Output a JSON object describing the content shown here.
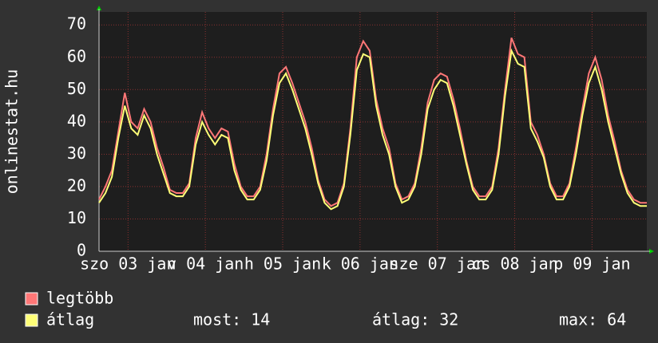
{
  "chart_data": {
    "type": "line",
    "ylabel": "onlinestat.hu",
    "xlim": [
      0,
      170
    ],
    "ylim": [
      0,
      74
    ],
    "yticks": [
      0,
      10,
      20,
      30,
      40,
      50,
      60,
      70
    ],
    "xticks": [
      {
        "value": 9,
        "label": "szo 03 jan"
      },
      {
        "value": 33,
        "label": "v 04 jan"
      },
      {
        "value": 57,
        "label": "h 05 jan"
      },
      {
        "value": 81,
        "label": "k 06 jan"
      },
      {
        "value": 105,
        "label": "sze 07 jan"
      },
      {
        "value": 129,
        "label": "cs 08 jan"
      },
      {
        "value": 153,
        "label": "p 09 jan"
      }
    ],
    "grid": true,
    "x": [
      0,
      2,
      4,
      6,
      8,
      10,
      12,
      14,
      16,
      18,
      20,
      22,
      24,
      26,
      28,
      30,
      32,
      34,
      36,
      38,
      40,
      42,
      44,
      46,
      48,
      50,
      52,
      54,
      56,
      58,
      60,
      62,
      64,
      66,
      68,
      70,
      72,
      74,
      76,
      78,
      80,
      82,
      84,
      86,
      88,
      90,
      92,
      94,
      96,
      98,
      100,
      102,
      104,
      106,
      108,
      110,
      112,
      114,
      116,
      118,
      120,
      122,
      124,
      126,
      128,
      130,
      132,
      134,
      136,
      138,
      140,
      142,
      144,
      146,
      148,
      150,
      152,
      154,
      156,
      158,
      160,
      162,
      164,
      166,
      168,
      170
    ],
    "series": [
      {
        "name": "legtöbb",
        "color": "#ff7777",
        "values": [
          16,
          20,
          25,
          37,
          49,
          40,
          38,
          44,
          40,
          32,
          26,
          19,
          18,
          18,
          21,
          35,
          43,
          38,
          35,
          38,
          37,
          27,
          20,
          17,
          17,
          20,
          30,
          44,
          55,
          57,
          52,
          46,
          40,
          32,
          22,
          16,
          14,
          15,
          21,
          38,
          60,
          65,
          62,
          47,
          38,
          32,
          21,
          16,
          17,
          21,
          32,
          46,
          53,
          55,
          54,
          47,
          38,
          28,
          20,
          17,
          17,
          20,
          32,
          50,
          66,
          61,
          60,
          40,
          36,
          30,
          21,
          17,
          17,
          21,
          32,
          44,
          55,
          60,
          53,
          42,
          34,
          25,
          19,
          16,
          15,
          15
        ]
      },
      {
        "name": "átlag",
        "color": "#ffff77",
        "values": [
          15,
          18,
          23,
          35,
          45,
          38,
          36,
          42,
          38,
          30,
          24,
          18,
          17,
          17,
          20,
          33,
          40,
          36,
          33,
          36,
          35,
          25,
          19,
          16,
          16,
          19,
          28,
          42,
          52,
          55,
          50,
          44,
          38,
          30,
          21,
          15,
          13,
          14,
          20,
          36,
          56,
          61,
          60,
          45,
          36,
          30,
          20,
          15,
          16,
          20,
          30,
          44,
          50,
          53,
          52,
          45,
          36,
          27,
          19,
          16,
          16,
          19,
          30,
          48,
          62,
          58,
          57,
          38,
          34,
          29,
          20,
          16,
          16,
          20,
          30,
          42,
          52,
          57,
          50,
          40,
          32,
          24,
          18,
          15,
          14,
          14
        ]
      }
    ],
    "stats": [
      {
        "label": "most:",
        "value": 14
      },
      {
        "label": "átlag:",
        "value": 32
      },
      {
        "label": "max:",
        "value": 64
      }
    ]
  }
}
